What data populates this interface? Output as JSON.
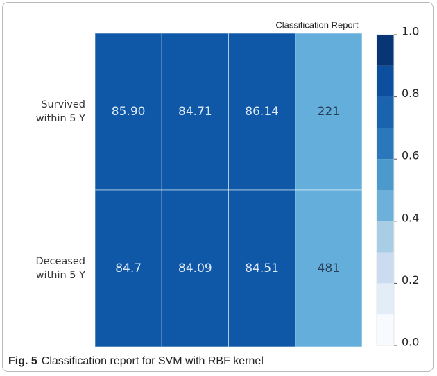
{
  "chart_data": {
    "type": "heatmap",
    "title": "Classification Report",
    "rows": [
      "Survived within 5 Y",
      "Deceased within 5 Y"
    ],
    "values": [
      [
        85.9,
        84.71,
        86.14,
        221
      ],
      [
        84.7,
        84.09,
        84.51,
        481
      ]
    ],
    "value_labels": [
      [
        "85.90",
        "84.71",
        "86.14",
        "221"
      ],
      [
        "84.7",
        "84.09",
        "84.51",
        "481"
      ]
    ],
    "cell_colors": [
      [
        "#0f58a8",
        "#0f58a8",
        "#0f58a8",
        "#63aedb"
      ],
      [
        "#0f58a8",
        "#0f58a8",
        "#0f58a8",
        "#63aedb"
      ]
    ],
    "colorbar": {
      "lim": [
        0,
        1
      ],
      "ticks": [
        {
          "value": 0,
          "label": "0.0"
        },
        0.2,
        0.4,
        0.6,
        0.8,
        {
          "value": 1,
          "label": "1.0"
        }
      ],
      "colors": [
        "#f7fbff",
        "#e2edf8",
        "#cbdcf0",
        "#a8cde5",
        "#6db1db",
        "#4b9acb",
        "#2a78bb",
        "#1a63ae",
        "#0b4f9e",
        "#083575"
      ]
    }
  },
  "caption": {
    "label": "Fig. 5",
    "text": "Classification report for SVM with RBF kernel"
  }
}
